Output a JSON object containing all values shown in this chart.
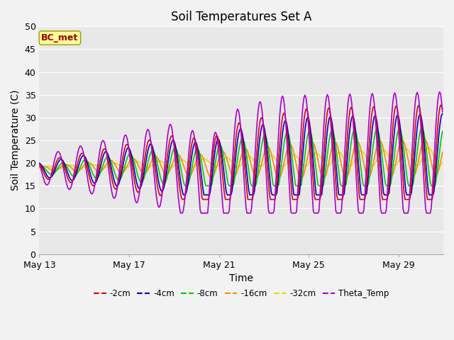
{
  "title": "Soil Temperatures Set A",
  "xlabel": "Time",
  "ylabel": "Soil Temperature (C)",
  "ylim": [
    0,
    50
  ],
  "yticks": [
    0,
    5,
    10,
    15,
    20,
    25,
    30,
    35,
    40,
    45,
    50
  ],
  "xtick_labels": [
    "May 13",
    "May 17",
    "May 21",
    "May 25",
    "May 29"
  ],
  "xtick_days": [
    0,
    4,
    8,
    12,
    16
  ],
  "xlim_days": [
    0,
    18
  ],
  "legend_labels": [
    "-2cm",
    "-4cm",
    "-8cm",
    "-16cm",
    "-32cm",
    "Theta_Temp"
  ],
  "line_colors": [
    "#dd0000",
    "#0000cc",
    "#00cc00",
    "#ff8800",
    "#dddd00",
    "#aa00cc"
  ],
  "bg_color": "#e8e8e8",
  "grid_color": "#ffffff",
  "fig_bg_color": "#f2f2f2",
  "annotation_text": "BC_met",
  "annotation_color": "#990000",
  "annotation_bg": "#ffff99",
  "annotation_border": "#999900",
  "title_fontsize": 12,
  "label_fontsize": 10,
  "tick_fontsize": 9,
  "figsize": [
    6.4,
    4.8
  ],
  "dpi": 100
}
